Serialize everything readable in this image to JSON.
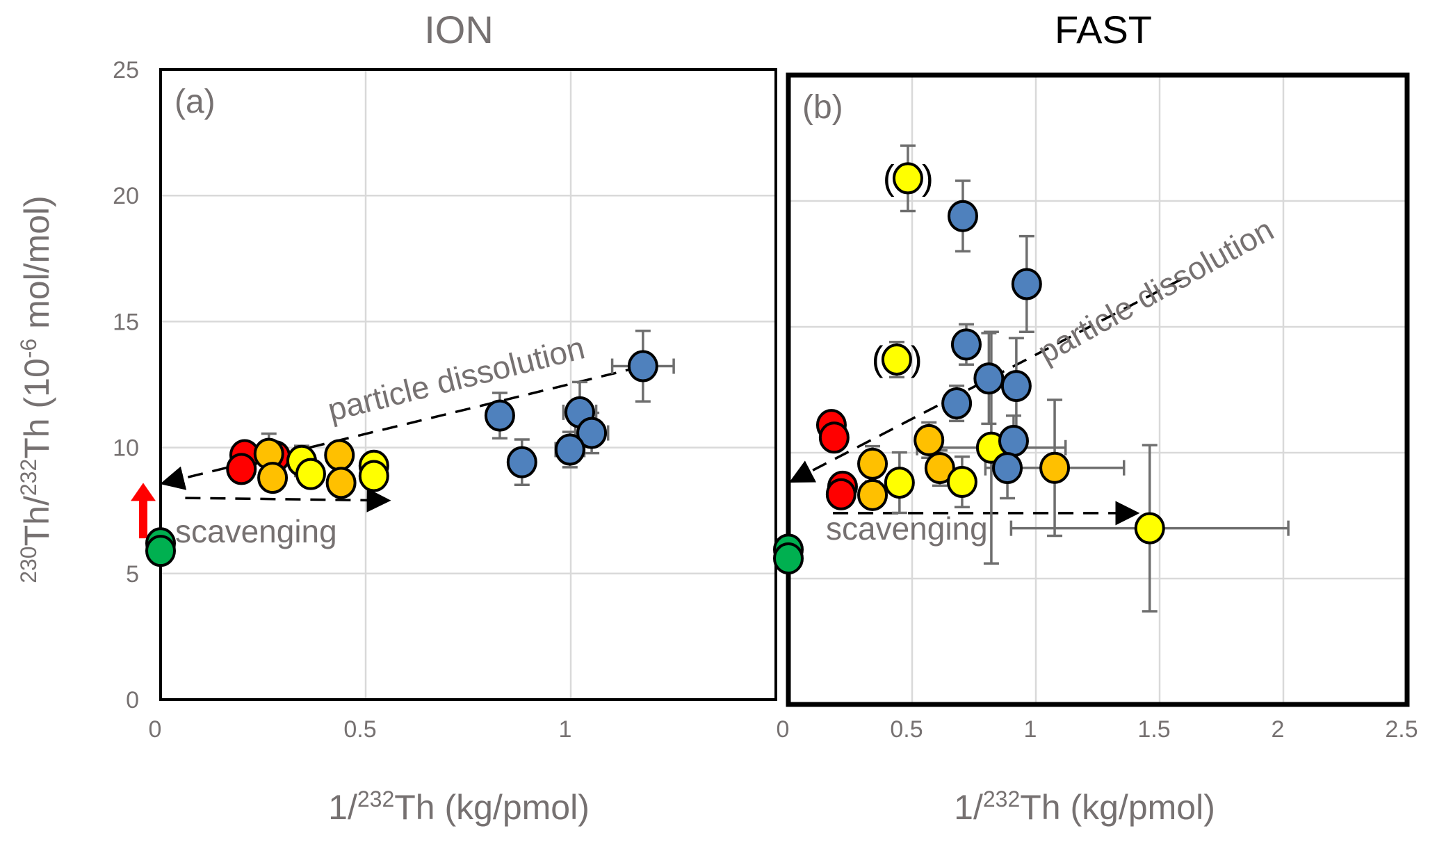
{
  "colors": {
    "blue": "#4f81bd",
    "yellow": "#ffff00",
    "orange": "#ffc000",
    "red": "#ff0000",
    "green": "#00b050",
    "indicator_arrow": "#ff0000"
  },
  "chart_data": [
    {
      "type": "scatter",
      "panel": "(a)",
      "title": "ION",
      "xlabel_prefix": "1/",
      "xlabel_sup": "232",
      "xlabel_suffix": "Th (kg/pmol)",
      "ylabel": "230Th/232Th (10-6 mol/mol)",
      "xlim": [
        0,
        1.5
      ],
      "ylim": [
        0,
        25
      ],
      "xticks": [
        0,
        0.5,
        1
      ],
      "xtick_labels": [
        "0",
        "0.5",
        "1"
      ],
      "yticks": [
        0,
        5,
        10,
        15,
        20,
        25
      ],
      "ytick_labels": [
        "0",
        "5",
        "10",
        "15",
        "20",
        "25"
      ],
      "grid": true,
      "annotations": [
        {
          "text": "particle dissolution",
          "type": "dashed-arrow",
          "from": [
            1.17,
            13.2
          ],
          "to": [
            0.01,
            8.6
          ]
        },
        {
          "text": "scavenging",
          "type": "dashed-arrow",
          "from": [
            0.06,
            8.0
          ],
          "to": [
            0.55,
            7.9
          ]
        },
        {
          "text": "",
          "type": "red-up-arrow",
          "at_x": -0.05,
          "from_y": 6.4,
          "to_y": 8.6
        }
      ],
      "series": [
        {
          "name": "red",
          "color": "red",
          "points": [
            {
              "x": 0.205,
              "y": 9.7
            },
            {
              "x": 0.197,
              "y": 9.15
            },
            {
              "x": 0.28,
              "y": 9.65
            }
          ]
        },
        {
          "name": "orange",
          "color": "orange",
          "points": [
            {
              "x": 0.264,
              "y": 9.75,
              "yerr": 0.8
            },
            {
              "x": 0.273,
              "y": 8.8
            },
            {
              "x": 0.436,
              "y": 9.7
            },
            {
              "x": 0.44,
              "y": 8.6
            }
          ]
        },
        {
          "name": "yellow",
          "color": "yellow",
          "points": [
            {
              "x": 0.344,
              "y": 9.47,
              "yerr": 0.6
            },
            {
              "x": 0.366,
              "y": 8.95
            },
            {
              "x": 0.52,
              "y": 9.28
            },
            {
              "x": 0.52,
              "y": 8.87
            }
          ]
        },
        {
          "name": "blue",
          "color": "blue",
          "points": [
            {
              "x": 0.827,
              "y": 11.27,
              "yerr": 0.9
            },
            {
              "x": 0.881,
              "y": 9.42,
              "yerr": 0.9,
              "xerr": 0.025
            },
            {
              "x": 1.022,
              "y": 11.4,
              "yerr": 1.2,
              "xerr": 0.04
            },
            {
              "x": 1.051,
              "y": 10.58,
              "yerr": 0.8,
              "xerr": 0.04
            },
            {
              "x": 0.998,
              "y": 9.92,
              "yerr": 0.7,
              "xerr": 0.035
            },
            {
              "x": 1.176,
              "y": 13.23,
              "yerr": 1.4,
              "xerr": 0.075
            }
          ]
        },
        {
          "name": "green",
          "color": "green",
          "points": [
            {
              "x": 0.0,
              "y": 6.2
            },
            {
              "x": 0.0,
              "y": 5.9
            }
          ]
        }
      ]
    },
    {
      "type": "scatter",
      "panel": "(b)",
      "title": "FAST",
      "xlabel_prefix": "1/",
      "xlabel_sup": "232",
      "xlabel_suffix": "Th (kg/pmol)",
      "xlim": [
        0,
        2.5
      ],
      "ylim": [
        0,
        25
      ],
      "xticks": [
        0,
        0.5,
        1,
        1.5,
        2,
        2.5
      ],
      "xtick_labels": [
        "0",
        "0.5",
        "1",
        "1.5",
        "2",
        "2.5"
      ],
      "yticks": [
        0,
        5,
        10,
        15,
        20,
        25
      ],
      "grid": true,
      "annotations": [
        {
          "text": "particle dissolution",
          "type": "dashed-arrow",
          "from": [
            1.59,
            16.9
          ],
          "to": [
            0.02,
            8.9
          ]
        },
        {
          "text": "scavenging",
          "type": "dashed-arrow",
          "from": [
            0.18,
            7.6
          ],
          "to": [
            1.4,
            7.6
          ]
        }
      ],
      "series": [
        {
          "name": "red",
          "color": "red",
          "points": [
            {
              "x": 0.174,
              "y": 11.1
            },
            {
              "x": 0.185,
              "y": 10.6
            },
            {
              "x": 0.219,
              "y": 8.65
            },
            {
              "x": 0.213,
              "y": 8.35
            }
          ]
        },
        {
          "name": "orange",
          "color": "orange",
          "points": [
            {
              "x": 0.568,
              "y": 10.5,
              "yerr": 0.7
            },
            {
              "x": 0.34,
              "y": 9.56,
              "yerr": 0.7
            },
            {
              "x": 0.612,
              "y": 9.39,
              "yerr": 0.7
            },
            {
              "x": 1.076,
              "y": 9.4,
              "yerr": 2.7,
              "xerr": 0.28
            },
            {
              "x": 0.34,
              "y": 8.32
            }
          ]
        },
        {
          "name": "yellow",
          "color": "yellow",
          "points": [
            {
              "x": 0.483,
              "y": 20.9,
              "yerr": 1.3,
              "bracketed": true
            },
            {
              "x": 0.438,
              "y": 13.7,
              "yerr": 0.7,
              "bracketed": true
            },
            {
              "x": 0.82,
              "y": 10.2,
              "yerr": 4.6,
              "xerr": 0.3
            },
            {
              "x": 0.449,
              "y": 8.81,
              "yerr": 1.2
            },
            {
              "x": 0.702,
              "y": 8.84,
              "yerr": 1.0
            },
            {
              "x": 1.46,
              "y": 7.0,
              "yerr": 3.3,
              "xerr": 0.56
            }
          ]
        },
        {
          "name": "blue",
          "color": "blue",
          "points": [
            {
              "x": 0.705,
              "y": 19.4,
              "yerr": 1.4
            },
            {
              "x": 0.963,
              "y": 16.7,
              "yerr": 1.9
            },
            {
              "x": 0.719,
              "y": 14.3,
              "yerr": 0.8
            },
            {
              "x": 0.81,
              "y": 12.95,
              "yerr": 1.8
            },
            {
              "x": 0.921,
              "y": 12.65,
              "yerr": 1.9
            },
            {
              "x": 0.68,
              "y": 11.96,
              "yerr": 0.7
            },
            {
              "x": 0.91,
              "y": 10.47,
              "yerr": 1.0
            },
            {
              "x": 0.885,
              "y": 9.39,
              "yerr": 1.2
            }
          ]
        },
        {
          "name": "green",
          "color": "green",
          "points": [
            {
              "x": 0.0,
              "y": 6.15
            },
            {
              "x": 0.0,
              "y": 5.8
            }
          ]
        }
      ]
    }
  ],
  "labels": {
    "title_a": "ION",
    "title_b": "FAST",
    "tag_a": "(a)",
    "tag_b": "(b)",
    "dissolution": "particle dissolution",
    "scavenging": "scavenging",
    "ylabel_sup1": "230",
    "ylabel_th1": "Th/",
    "ylabel_sup2": "232",
    "ylabel_th2": "Th (10",
    "ylabel_sup3": "-6",
    "ylabel_unit": " mol/mol)",
    "xlabel_prefix": "1/",
    "xlabel_sup": "232",
    "xlabel_suffix": "Th (kg/pmol)",
    "paren_open": "(",
    "paren_close": ")"
  }
}
